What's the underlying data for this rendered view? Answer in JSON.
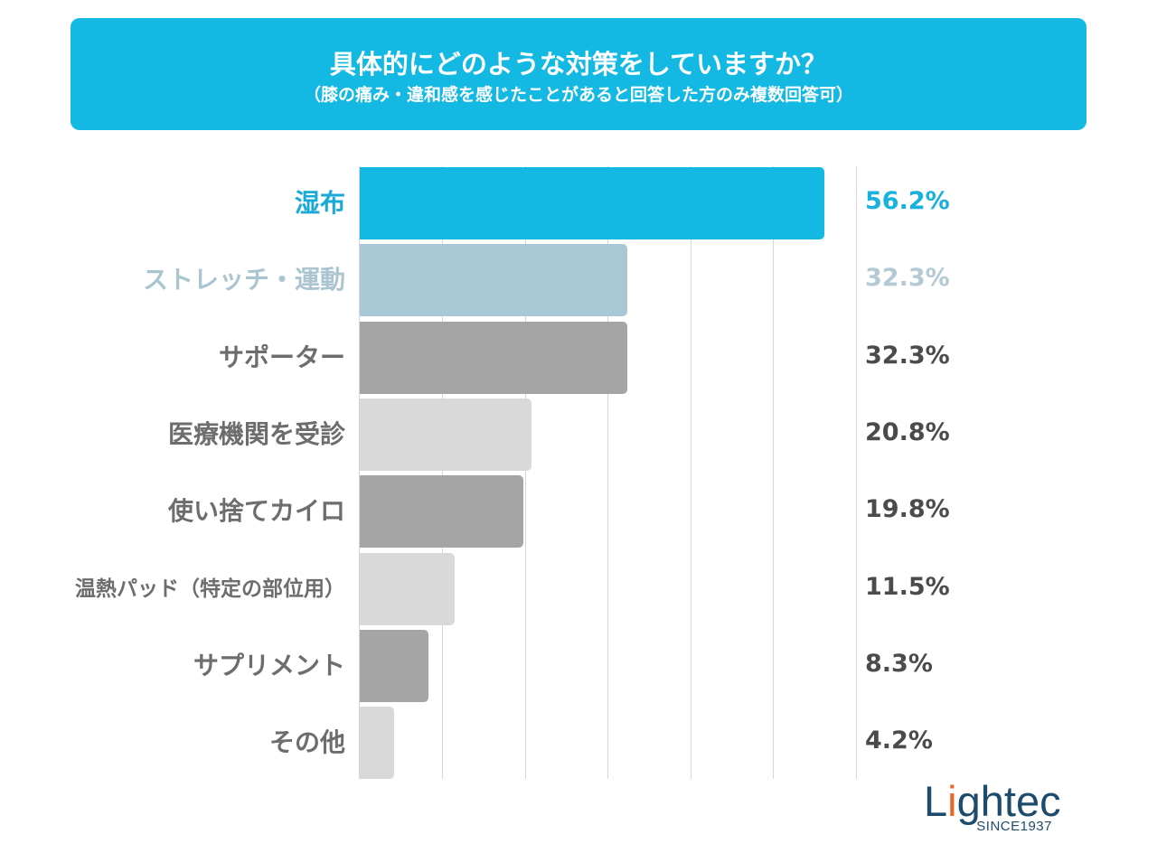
{
  "chart_data": {
    "type": "bar",
    "orientation": "horizontal",
    "title": "具体的にどのような対策をしていますか？",
    "subtitle": "（膝の痛み・違和感を感じたことがあると回答した方のみ複数回答可）",
    "xlabel": "",
    "ylabel": "",
    "unit": "%",
    "xlim": [
      0,
      60
    ],
    "grid": true,
    "grid_step": 10,
    "categories": [
      "湿布",
      "ストレッチ・運動",
      "サポーター",
      "医療機関を受診",
      "使い捨てカイロ",
      "温熱パッド（特定の部位用）",
      "サプリメント",
      "その他"
    ],
    "values": [
      56.2,
      32.3,
      32.3,
      20.8,
      19.8,
      11.5,
      8.3,
      4.2
    ],
    "value_labels": [
      "56.2%",
      "32.3%",
      "32.3%",
      "20.8%",
      "19.8%",
      "11.5%",
      "8.3%",
      "4.2%"
    ],
    "bar_colors": [
      "#14b9e3",
      "#a9c8d6",
      "#a5a5a5",
      "#d9d9d9",
      "#a5a5a5",
      "#d9d9d9",
      "#a5a5a5",
      "#d9d9d9"
    ],
    "category_label_colors": [
      "#1aaad8",
      "#abc5d0",
      "#6d6d6d",
      "#6d6d6d",
      "#6d6d6d",
      "#6d6d6d",
      "#6d6d6d",
      "#6d6d6d"
    ],
    "value_label_colors": [
      "#17b1dd",
      "#b3c9d3",
      "#4b4b4b",
      "#4b4b4b",
      "#4b4b4b",
      "#4b4b4b",
      "#4b4b4b",
      "#4b4b4b"
    ]
  },
  "colors": {
    "accent": "#14b9e3",
    "logo_primary": "#1d4b6c",
    "logo_accent": "#e8672b"
  },
  "logo": {
    "brand": "Lightec",
    "tagline": "SINCE1937"
  }
}
